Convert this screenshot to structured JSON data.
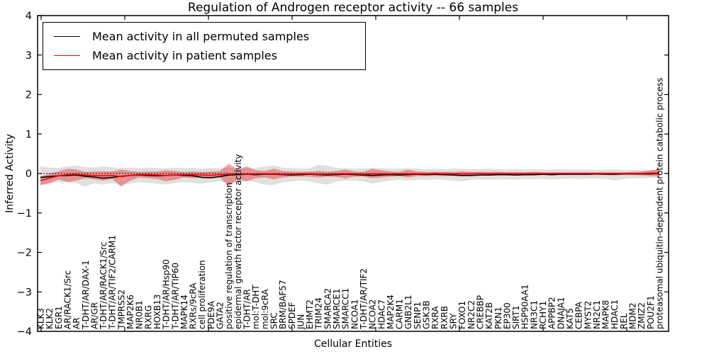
{
  "chart_data": {
    "type": "line",
    "title": "Regulation of Androgen receptor activity -- 66 samples",
    "xlabel": "Cellular Entities",
    "ylabel": "Inferred Activity",
    "ylim": [
      -4,
      4
    ],
    "yticks": [
      4,
      3,
      2,
      1,
      0,
      -1,
      -2,
      -3,
      -4
    ],
    "grid": false,
    "legend_position": "upper left",
    "categories": [
      "KLK3",
      "KLK2",
      "EGR1",
      "AR/RACK1/Src",
      "AR",
      "T-DHT/AR/DAX-1",
      "AR/GR",
      "T-DHT/AR/RACK1/Src",
      "T-DHT/AR/TIF2/CARM1",
      "TMPRSS2",
      "MAP2K6",
      "NR0B1",
      "RXRG",
      "HOXB13",
      "T-DHT/AR/Hsp90",
      "T-DHT/AR/TIP60",
      "MAPK14",
      "RXRs/9cRA",
      "cell proliferation",
      "PDE9A",
      "GATA2",
      "positive regulation of transcription",
      "epidermal growth factor receptor activity",
      "T-DHT/AR",
      "mol:T-DHT",
      "mol:9cRA",
      "SRC",
      "BRM/BAF57",
      "SPDEF",
      "JUN",
      "EHMT2",
      "TRIM24",
      "SMARCA2",
      "SMARCE1",
      "SMARCC1",
      "NCOA1",
      "T-DHT/AR/TIF2",
      "NCOA2",
      "HDAC7",
      "MAP2K4",
      "CARM1",
      "GNB2L1",
      "SENP1",
      "GSK3B",
      "RXRA",
      "RXRB",
      "SRY",
      "FOXO1",
      "NR2C2",
      "CREBBP",
      "KAT2B",
      "PKN1",
      "EP300",
      "SIRT1",
      "HSP90AA1",
      "NR3C1",
      "RCHY1",
      "APPBP2",
      "DNAJA1",
      "KAT5",
      "CEBPA",
      "MYST2",
      "NR2C1",
      "MAPK8",
      "HDAC1",
      "REL",
      "MDM2",
      "ZMIZ2",
      "POU2F1",
      "proteasomal ubiquitin-dependent protein catabolic process"
    ],
    "series": [
      {
        "name": "Mean activity in all permuted samples",
        "color": "#000000",
        "values": [
          -0.1,
          -0.08,
          -0.06,
          -0.05,
          -0.04,
          -0.07,
          -0.09,
          -0.12,
          -0.1,
          -0.07,
          -0.05,
          -0.04,
          -0.05,
          -0.06,
          -0.05,
          -0.04,
          -0.05,
          -0.06,
          -0.1,
          -0.11,
          -0.08,
          -0.04,
          -0.03,
          -0.02,
          -0.03,
          -0.02,
          -0.02,
          -0.03,
          -0.04,
          -0.03,
          -0.02,
          -0.03,
          -0.04,
          -0.03,
          -0.02,
          -0.03,
          -0.04,
          -0.05,
          -0.04,
          -0.03,
          -0.04,
          -0.03,
          -0.02,
          -0.03,
          -0.02,
          -0.03,
          -0.04,
          -0.05,
          -0.05,
          -0.04,
          -0.04,
          -0.03,
          -0.03,
          -0.04,
          -0.03,
          -0.03,
          -0.02,
          -0.03,
          -0.02,
          -0.02,
          -0.02,
          -0.02,
          -0.01,
          -0.02,
          -0.02,
          -0.01,
          -0.01,
          -0.01,
          -0.01,
          0.0
        ]
      },
      {
        "name": "Mean activity in patient samples",
        "color": "#ff0000",
        "values": [
          -0.18,
          -0.12,
          -0.06,
          -0.03,
          -0.02,
          -0.04,
          -0.05,
          -0.06,
          -0.05,
          -0.08,
          -0.05,
          -0.03,
          -0.03,
          -0.04,
          -0.05,
          -0.04,
          -0.03,
          -0.03,
          -0.04,
          -0.05,
          -0.03,
          -0.02,
          -0.01,
          -0.02,
          -0.01,
          -0.01,
          -0.01,
          -0.02,
          -0.02,
          -0.01,
          -0.01,
          -0.02,
          -0.02,
          -0.01,
          -0.01,
          -0.01,
          -0.02,
          -0.01,
          -0.01,
          -0.01,
          -0.01,
          -0.01,
          -0.01,
          -0.01,
          0.0,
          -0.01,
          -0.01,
          -0.01,
          -0.01,
          0.0,
          -0.01,
          0.0,
          0.0,
          -0.01,
          0.0,
          0.0,
          0.0,
          0.0,
          0.0,
          0.0,
          0.0,
          0.0,
          0.0,
          0.0,
          0.0,
          0.0,
          0.0,
          0.0,
          0.01,
          0.01
        ]
      }
    ],
    "bands": [
      {
        "name": "permuted samples range",
        "color": "#999999",
        "opacity": 0.3,
        "upper": [
          0.18,
          0.15,
          0.14,
          0.18,
          0.2,
          0.16,
          0.15,
          0.18,
          0.16,
          0.14,
          0.15,
          0.13,
          0.15,
          0.14,
          0.13,
          0.15,
          0.13,
          0.14,
          0.12,
          0.14,
          0.13,
          0.15,
          0.14,
          0.13,
          0.14,
          0.18,
          0.2,
          0.15,
          0.13,
          0.12,
          0.13,
          0.22,
          0.2,
          0.14,
          0.13,
          0.12,
          0.13,
          0.14,
          0.13,
          0.12,
          0.12,
          0.13,
          0.12,
          0.11,
          0.12,
          0.11,
          0.12,
          0.12,
          0.11,
          0.11,
          0.12,
          0.11,
          0.1,
          0.11,
          0.1,
          0.11,
          0.1,
          0.1,
          0.11,
          0.1,
          0.1,
          0.1,
          0.09,
          0.1,
          0.1,
          0.09,
          0.09,
          0.08,
          0.08,
          0.08
        ],
        "lower": [
          -0.28,
          -0.25,
          -0.22,
          -0.22,
          -0.25,
          -0.33,
          -0.25,
          -0.28,
          -0.24,
          -0.3,
          -0.25,
          -0.22,
          -0.24,
          -0.26,
          -0.28,
          -0.24,
          -0.22,
          -0.24,
          -0.26,
          -0.22,
          -0.2,
          -0.24,
          -0.22,
          -0.2,
          -0.22,
          -0.28,
          -0.3,
          -0.22,
          -0.2,
          -0.18,
          -0.2,
          -0.25,
          -0.28,
          -0.2,
          -0.18,
          -0.18,
          -0.2,
          -0.25,
          -0.22,
          -0.18,
          -0.16,
          -0.18,
          -0.16,
          -0.16,
          -0.15,
          -0.16,
          -0.18,
          -0.2,
          -0.16,
          -0.15,
          -0.16,
          -0.15,
          -0.15,
          -0.16,
          -0.14,
          -0.15,
          -0.14,
          -0.15,
          -0.14,
          -0.13,
          -0.14,
          -0.13,
          -0.13,
          -0.14,
          -0.18,
          -0.14,
          -0.12,
          -0.12,
          -0.11,
          -0.1
        ]
      },
      {
        "name": "patient samples range",
        "color": "#e62020",
        "opacity": 0.4,
        "upper": [
          -0.08,
          0.0,
          0.05,
          0.12,
          0.1,
          0.04,
          0.05,
          0.06,
          0.05,
          0.1,
          0.06,
          0.04,
          0.05,
          0.05,
          0.08,
          0.06,
          0.04,
          0.05,
          0.04,
          0.05,
          0.06,
          0.25,
          0.1,
          0.18,
          0.08,
          0.06,
          0.12,
          0.06,
          0.05,
          0.04,
          0.05,
          0.06,
          0.05,
          0.06,
          0.1,
          0.05,
          0.04,
          0.12,
          0.08,
          0.05,
          0.04,
          0.1,
          0.05,
          0.04,
          0.04,
          0.04,
          0.04,
          0.05,
          0.04,
          0.04,
          0.04,
          0.04,
          0.03,
          0.04,
          0.03,
          0.04,
          0.03,
          0.03,
          0.03,
          0.03,
          0.03,
          0.03,
          0.03,
          0.03,
          0.03,
          0.03,
          0.04,
          0.05,
          0.08,
          0.1
        ],
        "lower": [
          -0.3,
          -0.25,
          -0.15,
          -0.22,
          -0.18,
          -0.12,
          -0.15,
          -0.18,
          -0.14,
          -0.33,
          -0.18,
          -0.1,
          -0.12,
          -0.14,
          -0.2,
          -0.16,
          -0.1,
          -0.12,
          -0.1,
          -0.12,
          -0.1,
          -0.33,
          -0.15,
          -0.2,
          -0.12,
          -0.1,
          -0.15,
          -0.1,
          -0.08,
          -0.08,
          -0.08,
          -0.1,
          -0.08,
          -0.09,
          -0.12,
          -0.08,
          -0.08,
          -0.12,
          -0.1,
          -0.08,
          -0.07,
          -0.1,
          -0.07,
          -0.06,
          -0.06,
          -0.06,
          -0.06,
          -0.07,
          -0.06,
          -0.05,
          -0.06,
          -0.05,
          -0.05,
          -0.05,
          -0.05,
          -0.05,
          -0.04,
          -0.05,
          -0.04,
          -0.04,
          -0.04,
          -0.04,
          -0.04,
          -0.04,
          -0.05,
          -0.04,
          -0.04,
          -0.05,
          -0.06,
          -0.08
        ]
      }
    ],
    "zero_line": {
      "style": "dashed",
      "color": "#000000",
      "y": 0
    }
  }
}
